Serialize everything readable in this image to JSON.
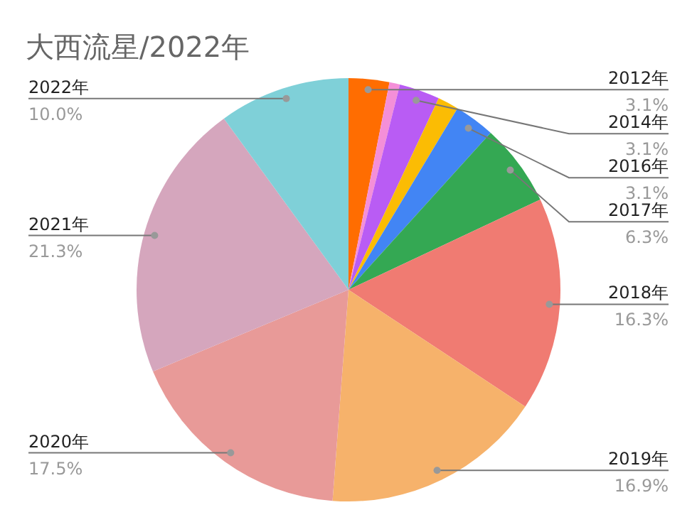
{
  "chart_data": {
    "type": "pie",
    "title": "大西流星/2022年",
    "categories": [
      "2012年",
      null,
      "2014年",
      null,
      "2016年",
      "2017年",
      "2018年",
      "2019年",
      "2020年",
      "2021年",
      "2022年"
    ],
    "values": [
      3.1,
      0.8,
      3.1,
      1.6,
      3.1,
      6.3,
      16.3,
      16.9,
      17.5,
      21.3,
      10.0
    ],
    "value_labels": [
      "3.1%",
      null,
      "3.1%",
      null,
      "3.1%",
      "6.3%",
      "16.3%",
      "16.9%",
      "17.5%",
      "21.3%",
      "10.0%"
    ],
    "colors": [
      "#ff6d01",
      "#f48fd8",
      "#b95cf4",
      "#fbbc04",
      "#4285f4",
      "#34a853",
      "#f07b72",
      "#f6b26b",
      "#e89a98",
      "#d5a6bd",
      "#7fd0d8"
    ]
  }
}
